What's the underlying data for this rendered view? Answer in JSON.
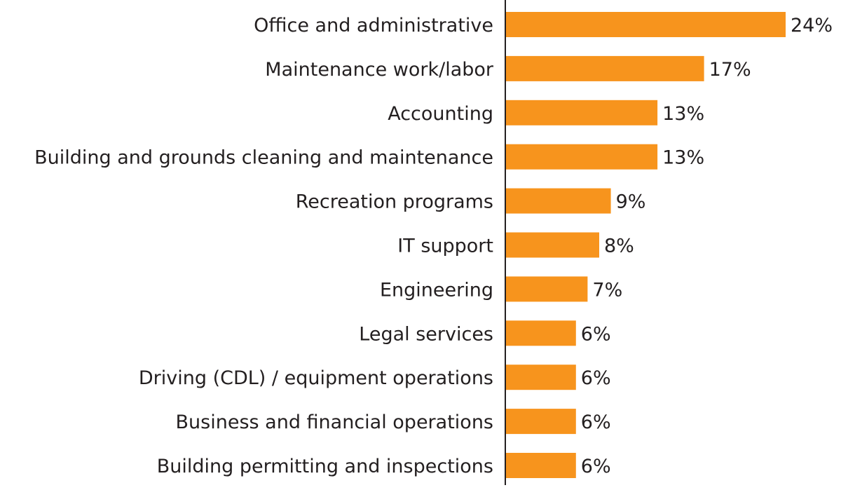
{
  "chart_data": {
    "type": "bar",
    "orientation": "horizontal",
    "categories": [
      "Office and administrative",
      "Maintenance work/labor",
      "Accounting",
      "Building and grounds cleaning and maintenance",
      "Recreation programs",
      "IT support",
      "Engineering",
      "Legal services",
      "Driving (CDL) / equipment operations",
      "Business and financial operations",
      "Building permitting and inspections"
    ],
    "values": [
      24,
      17,
      13,
      13,
      9,
      8,
      7,
      6,
      6,
      6,
      6
    ],
    "value_labels": [
      "24%",
      "17%",
      "13%",
      "13%",
      "9%",
      "8%",
      "7%",
      "6%",
      "6%",
      "6%",
      "6%"
    ],
    "unit": "%",
    "title": "",
    "xlabel": "",
    "ylabel": "",
    "xlim": [
      0,
      24
    ],
    "grid": false,
    "legend": "none",
    "bar_color": "#f7941d",
    "axis_color": "#231f20",
    "text_color": "#231f20"
  }
}
